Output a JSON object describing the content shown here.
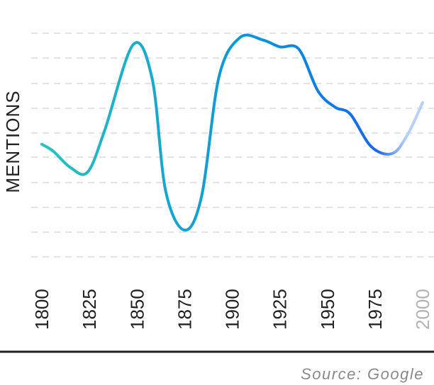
{
  "chart_data": {
    "type": "line",
    "ylabel": "MENTIONS",
    "xlabel": "",
    "x_tick_labels": [
      "1800",
      "1825",
      "1850",
      "1875",
      "1900",
      "1925",
      "1950",
      "1975",
      "2000"
    ],
    "x": [
      1800,
      1806,
      1815,
      1824,
      1833,
      1848,
      1858,
      1865,
      1875,
      1884,
      1893,
      1904,
      1916,
      1925,
      1935,
      1945,
      1954,
      1962,
      1973,
      1984,
      1992,
      2000
    ],
    "values": [
      4.0,
      3.7,
      3.0,
      2.8,
      4.6,
      8.3,
      6.8,
      2.0,
      0.3,
      1.8,
      6.9,
      8.6,
      8.5,
      8.2,
      8.1,
      6.3,
      5.6,
      5.3,
      3.9,
      3.6,
      4.4,
      5.8
    ],
    "grid": true,
    "projected_segment_color": "#b7d0fb",
    "line_colors": [
      "#2cc4bf",
      "#16a5cf",
      "#0a8fdc",
      "#1868e8",
      "#b7d0fb"
    ]
  },
  "source": "Source: Google"
}
